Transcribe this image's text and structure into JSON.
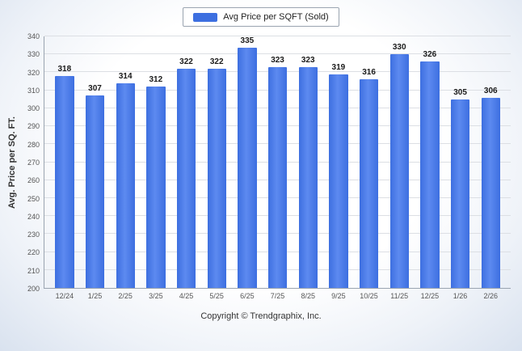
{
  "legend": {
    "label": "Avg Price per SQFT (Sold)",
    "swatch_color": "#3d6fe0"
  },
  "footer": {
    "copyright": "Copyright © Trendgraphix, Inc."
  },
  "chart_data": {
    "type": "bar",
    "title": "",
    "categories": [
      "12/24",
      "1/25",
      "2/25",
      "3/25",
      "4/25",
      "5/25",
      "6/25",
      "7/25",
      "8/25",
      "9/25",
      "10/25",
      "11/25",
      "12/25",
      "1/26",
      "2/26"
    ],
    "values": [
      318,
      307,
      314,
      312,
      322,
      322,
      335,
      323,
      323,
      319,
      316,
      330,
      326,
      305,
      306
    ],
    "series_name": "Avg Price per SQFT (Sold)",
    "xlabel": "",
    "ylabel": "Avg. Price per SQ. FT.",
    "ylim": [
      200,
      340
    ],
    "ytick_step": 10,
    "grid": true,
    "legend_position": "top",
    "bar_color": "#3d6fe0"
  }
}
